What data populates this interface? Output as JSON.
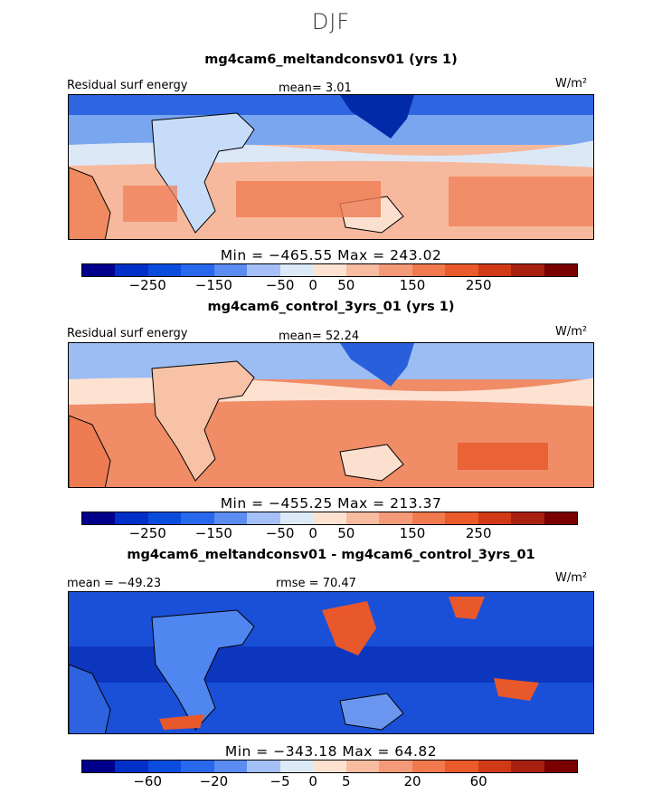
{
  "season": "DJF",
  "panels": [
    {
      "title": "mg4cam6_meltandconsv01 (yrs 1)",
      "left_label": "Residual surf energy",
      "stat": "mean=   3.01",
      "units": "W/m²",
      "minmax": "Min = −465.55 Max = 243.02"
    },
    {
      "title": "mg4cam6_control_3yrs_01 (yrs 1)",
      "left_label": "Residual surf energy",
      "stat": "mean=  52.24",
      "units": "W/m²",
      "minmax": "Min = −455.25 Max = 213.37"
    },
    {
      "title": "mg4cam6_meltandconsv01 - mg4cam6_control_3yrs_01",
      "left_label": "mean = −49.23",
      "stat": "rmse =  70.47",
      "units": "W/m²",
      "minmax": "Min = −343.18 Max =  64.82"
    }
  ],
  "chart_data": [
    {
      "type": "heatmap",
      "title": "mg4cam6_meltandconsv01 (yrs 1)",
      "variable": "Residual surf energy",
      "units": "W/m2",
      "season": "DJF",
      "mean": 3.01,
      "min": -465.55,
      "max": 243.02,
      "colorbar_ticks": [
        "-250",
        "-150",
        "-50",
        "0",
        "50",
        "150",
        "250"
      ],
      "colors": [
        "#00008b",
        "#0030c8",
        "#0a4cdc",
        "#2868ec",
        "#5a8cf2",
        "#a4c0f6",
        "#dceaf8",
        "#fde2d2",
        "#f8bca0",
        "#f49a78",
        "#f07a4e",
        "#ea5a2a",
        "#d03a16",
        "#a82010",
        "#7a0000"
      ]
    },
    {
      "type": "heatmap",
      "title": "mg4cam6_control_3yrs_01 (yrs 1)",
      "variable": "Residual surf energy",
      "units": "W/m2",
      "season": "DJF",
      "mean": 52.24,
      "min": -455.25,
      "max": 213.37,
      "colorbar_ticks": [
        "-250",
        "-150",
        "-50",
        "0",
        "50",
        "150",
        "250"
      ],
      "colors": [
        "#00008b",
        "#0030c8",
        "#0a4cdc",
        "#2868ec",
        "#5a8cf2",
        "#a4c0f6",
        "#dceaf8",
        "#fde2d2",
        "#f8bca0",
        "#f49a78",
        "#f07a4e",
        "#ea5a2a",
        "#d03a16",
        "#a82010",
        "#7a0000"
      ]
    },
    {
      "type": "heatmap",
      "title": "mg4cam6_meltandconsv01 - mg4cam6_control_3yrs_01",
      "units": "W/m2",
      "season": "DJF",
      "mean": -49.23,
      "rmse": 70.47,
      "min": -343.18,
      "max": 64.82,
      "colorbar_ticks": [
        "-60",
        "-20",
        "-5",
        "0",
        "5",
        "20",
        "60"
      ],
      "colors": [
        "#00008b",
        "#0030c8",
        "#0a4cdc",
        "#2868ec",
        "#5a8cf2",
        "#a4c0f6",
        "#dceaf8",
        "#fde2d2",
        "#f8bca0",
        "#f49a78",
        "#f07a4e",
        "#ea5a2a",
        "#d03a16",
        "#a82010",
        "#7a0000"
      ]
    }
  ]
}
